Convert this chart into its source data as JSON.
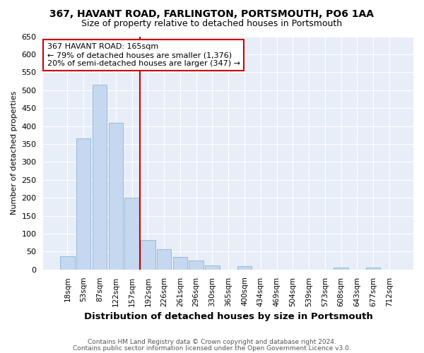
{
  "title1": "367, HAVANT ROAD, FARLINGTON, PORTSMOUTH, PO6 1AA",
  "title2": "Size of property relative to detached houses in Portsmouth",
  "xlabel": "Distribution of detached houses by size in Portsmouth",
  "ylabel": "Number of detached properties",
  "bin_labels": [
    "18sqm",
    "53sqm",
    "87sqm",
    "122sqm",
    "157sqm",
    "192sqm",
    "226sqm",
    "261sqm",
    "296sqm",
    "330sqm",
    "365sqm",
    "400sqm",
    "434sqm",
    "469sqm",
    "504sqm",
    "539sqm",
    "573sqm",
    "608sqm",
    "643sqm",
    "677sqm",
    "712sqm"
  ],
  "bar_heights": [
    38,
    365,
    515,
    408,
    200,
    83,
    57,
    35,
    25,
    12,
    0,
    10,
    0,
    0,
    0,
    0,
    0,
    5,
    0,
    5,
    0
  ],
  "bar_color": "#c5d8f0",
  "bar_edge_color": "#7aaad0",
  "figure_bg": "#ffffff",
  "plot_bg": "#e8eef8",
  "grid_color": "#ffffff",
  "red_line_x": 4.5,
  "annotation_title": "367 HAVANT ROAD: 165sqm",
  "annotation_line1": "← 79% of detached houses are smaller (1,376)",
  "annotation_line2": "20% of semi-detached houses are larger (347) →",
  "annotation_box_color": "#ffffff",
  "annotation_border_color": "#cc0000",
  "red_line_color": "#cc0000",
  "ylim": [
    0,
    650
  ],
  "yticks": [
    0,
    50,
    100,
    150,
    200,
    250,
    300,
    350,
    400,
    450,
    500,
    550,
    600,
    650
  ],
  "footnote1": "Contains HM Land Registry data © Crown copyright and database right 2024.",
  "footnote2": "Contains public sector information licensed under the Open Government Licence v3.0.",
  "title1_fontsize": 10,
  "title2_fontsize": 9
}
